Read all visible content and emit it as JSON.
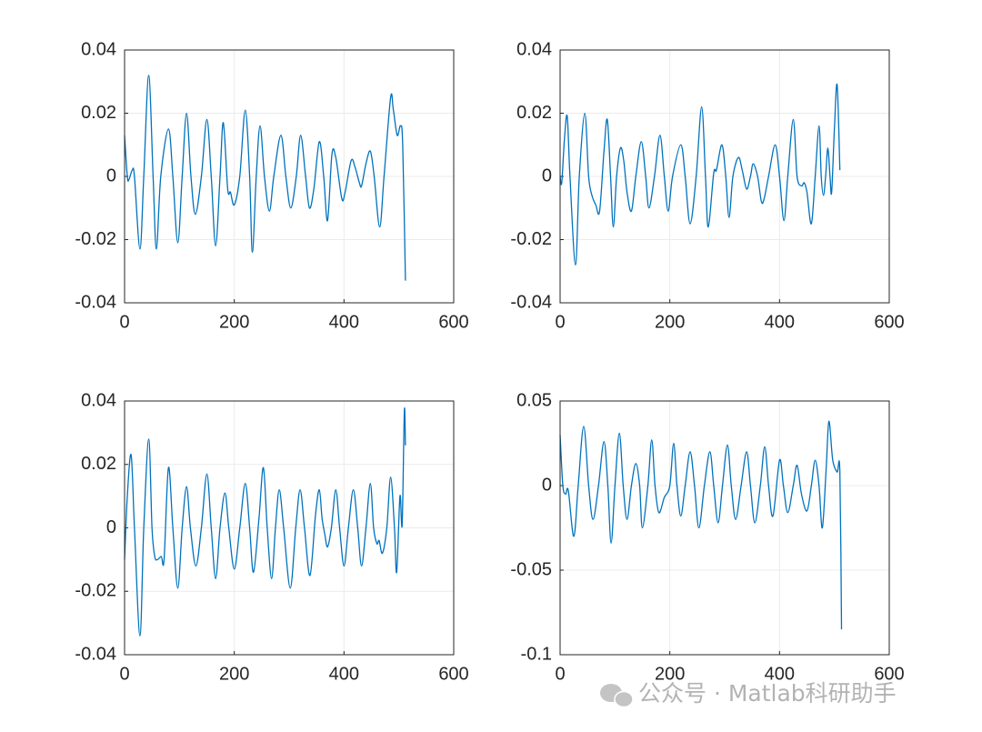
{
  "chart_data": [
    {
      "type": "line",
      "color": "#0072bd",
      "grid": true,
      "xlim": [
        0,
        600
      ],
      "xticks": [
        0,
        200,
        400,
        600
      ],
      "ylim": [
        -0.04,
        0.04
      ],
      "yticks": [
        -0.04,
        -0.02,
        0,
        0.02,
        0.04
      ],
      "x": [
        0,
        5,
        8,
        14,
        18,
        28,
        35,
        44,
        52,
        58,
        66,
        80,
        88,
        97,
        105,
        113,
        121,
        129,
        140,
        150,
        158,
        166,
        174,
        180,
        188,
        193,
        200,
        210,
        220,
        228,
        233,
        240,
        247,
        255,
        264,
        272,
        285,
        294,
        303,
        313,
        321,
        330,
        337,
        345,
        355,
        363,
        370,
        378,
        385,
        396,
        402,
        413,
        420,
        428,
        432,
        440,
        448,
        455,
        465,
        473,
        485,
        490,
        497,
        503,
        507,
        512
      ],
      "values": [
        0.013,
        0,
        -0.001,
        0.002,
        0,
        -0.023,
        0,
        0.032,
        0,
        -0.023,
        0,
        0.015,
        0,
        -0.021,
        0,
        0.02,
        0,
        -0.012,
        0,
        0.018,
        0,
        -0.022,
        0,
        0.017,
        -0.004,
        -0.005,
        -0.009,
        0,
        0.021,
        0,
        -0.024,
        0,
        0.016,
        0,
        -0.011,
        0,
        0.013,
        0,
        -0.01,
        0,
        0.013,
        0,
        -0.01,
        -0.004,
        0.011,
        0,
        -0.014,
        0.007,
        0.006,
        -0.007,
        -0.005,
        0.005,
        0.003,
        -0.002,
        -0.003,
        0.004,
        0.008,
        0,
        -0.016,
        0,
        0.025,
        0.021,
        0.013,
        0.016,
        0.01,
        -0.033
      ]
    },
    {
      "type": "line",
      "color": "#0072bd",
      "grid": true,
      "xlim": [
        0,
        600
      ],
      "xticks": [
        0,
        200,
        400,
        600
      ],
      "ylim": [
        -0.04,
        0.04
      ],
      "yticks": [
        -0.04,
        -0.02,
        0,
        0.02,
        0.04
      ],
      "x": [
        0,
        3,
        8,
        13,
        18,
        28,
        35,
        45,
        52,
        58,
        65,
        72,
        80,
        86,
        92,
        97,
        103,
        110,
        116,
        122,
        130,
        138,
        148,
        156,
        162,
        172,
        182,
        190,
        197,
        205,
        220,
        228,
        237,
        248,
        258,
        265,
        270,
        280,
        285,
        295,
        302,
        308,
        315,
        325,
        332,
        340,
        347,
        352,
        360,
        367,
        372,
        380,
        392,
        400,
        408,
        415,
        425,
        432,
        440,
        445,
        450,
        458,
        465,
        472,
        476,
        480,
        484,
        488,
        492,
        495,
        500,
        505,
        510
      ],
      "values": [
        0,
        -0.002,
        0.012,
        0.019,
        0,
        -0.028,
        0,
        0.02,
        0,
        -0.006,
        -0.009,
        -0.011,
        0.008,
        0.018,
        0,
        -0.016,
        0,
        0.009,
        0.005,
        -0.005,
        -0.011,
        0,
        0.011,
        0,
        -0.01,
        0,
        0.013,
        0,
        -0.011,
        0,
        0.01,
        0,
        -0.015,
        0,
        0.022,
        0,
        -0.016,
        0.001,
        0.002,
        0.01,
        0,
        -0.013,
        0,
        0.006,
        0.002,
        -0.004,
        0,
        0.004,
        0,
        -0.008,
        -0.007,
        0,
        0.01,
        0,
        -0.014,
        0,
        0.018,
        0,
        -0.003,
        -0.002,
        -0.005,
        -0.015,
        0,
        0.016,
        0,
        -0.006,
        0,
        0.009,
        0,
        -0.005,
        0.015,
        0.029,
        0.002
      ]
    },
    {
      "type": "line",
      "color": "#0072bd",
      "grid": true,
      "xlim": [
        0,
        600
      ],
      "xticks": [
        0,
        200,
        400,
        600
      ],
      "ylim": [
        -0.04,
        0.04
      ],
      "yticks": [
        -0.04,
        -0.02,
        0,
        0.02,
        0.04
      ],
      "x": [
        0,
        5,
        12,
        18,
        28,
        35,
        44,
        50,
        55,
        60,
        67,
        72,
        80,
        88,
        97,
        105,
        113,
        120,
        130,
        140,
        150,
        158,
        166,
        174,
        183,
        190,
        200,
        210,
        220,
        228,
        235,
        245,
        253,
        260,
        268,
        275,
        282,
        290,
        302,
        312,
        320,
        328,
        338,
        348,
        355,
        360,
        365,
        370,
        377,
        385,
        392,
        400,
        408,
        417,
        425,
        432,
        440,
        448,
        454,
        460,
        464,
        470,
        478,
        485,
        492,
        496,
        502,
        506,
        510,
        512
      ],
      "values": [
        -0.01,
        0.01,
        0.023,
        0,
        -0.034,
        0,
        0.028,
        0,
        -0.009,
        -0.01,
        -0.009,
        -0.01,
        0.019,
        0,
        -0.019,
        0,
        0.013,
        0,
        -0.012,
        0,
        0.017,
        0,
        -0.016,
        0,
        0.011,
        0,
        -0.013,
        0,
        0.014,
        0,
        -0.014,
        0.003,
        0.019,
        0,
        -0.016,
        0,
        0.012,
        0,
        -0.019,
        0,
        0.012,
        0,
        -0.015,
        0.004,
        0.012,
        0.003,
        -0.002,
        -0.006,
        0,
        0.012,
        0,
        -0.012,
        0,
        0.012,
        0,
        -0.012,
        0,
        0.014,
        0,
        -0.005,
        -0.004,
        -0.008,
        0,
        0.016,
        0,
        -0.014,
        0.01,
        0.001,
        0.037,
        0.026
      ]
    },
    {
      "type": "line",
      "color": "#0072bd",
      "grid": true,
      "xlim": [
        0,
        600
      ],
      "xticks": [
        0,
        200,
        400,
        600
      ],
      "ylim": [
        -0.1,
        0.05
      ],
      "yticks": [
        -0.1,
        -0.05,
        0,
        0.05
      ],
      "x": [
        0,
        5,
        10,
        15,
        25,
        33,
        43,
        52,
        60,
        70,
        80,
        87,
        93,
        100,
        108,
        115,
        122,
        130,
        138,
        145,
        150,
        160,
        167,
        173,
        180,
        190,
        200,
        207,
        213,
        220,
        228,
        237,
        245,
        253,
        263,
        273,
        280,
        288,
        296,
        305,
        312,
        320,
        330,
        340,
        347,
        355,
        365,
        373,
        380,
        388,
        400,
        407,
        415,
        425,
        432,
        440,
        450,
        458,
        465,
        472,
        478,
        485,
        490,
        497,
        505,
        510,
        513
      ],
      "values": [
        0.03,
        0,
        -0.005,
        -0.003,
        -0.03,
        0,
        0.035,
        0,
        -0.02,
        0,
        0.026,
        0,
        -0.034,
        0,
        0.031,
        0,
        -0.02,
        0,
        0.013,
        0,
        -0.025,
        0,
        0.027,
        0,
        -0.016,
        -0.007,
        0,
        0.025,
        0,
        -0.018,
        0,
        0.02,
        0,
        -0.025,
        0,
        0.02,
        0,
        -0.022,
        0,
        0.024,
        0,
        -0.02,
        0,
        0.02,
        0,
        -0.022,
        0,
        0.023,
        0,
        -0.018,
        0.015,
        0,
        -0.016,
        0,
        0.012,
        -0.005,
        -0.015,
        0,
        0.015,
        0,
        -0.025,
        0.01,
        0.038,
        0.015,
        0.008,
        0.008,
        -0.085
      ]
    }
  ],
  "watermark": "公众号 · Matlab科研助手"
}
